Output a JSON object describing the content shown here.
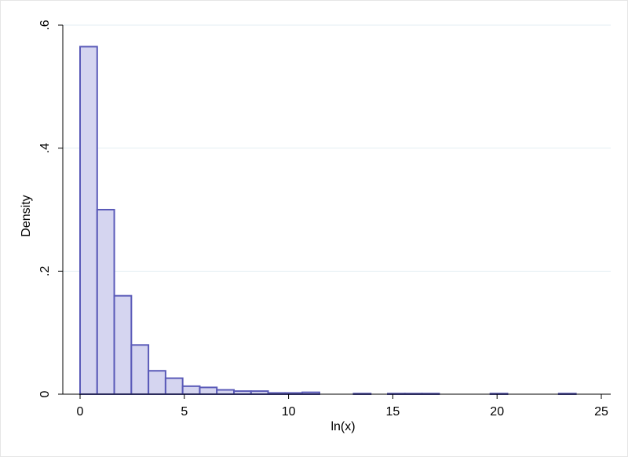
{
  "chart_data": {
    "type": "bar",
    "subtype": "histogram",
    "xlabel": "ln(x)",
    "ylabel": "Density",
    "xlim": [
      0,
      25
    ],
    "ylim": [
      0,
      0.6
    ],
    "xticks": [
      0,
      5,
      10,
      15,
      20,
      25
    ],
    "xtick_labels": [
      "0",
      "5",
      "10",
      "15",
      "20",
      "25"
    ],
    "yticks": [
      0,
      0.2,
      0.4,
      0.6
    ],
    "ytick_labels": [
      "0",
      ".2",
      ".4",
      ".6"
    ],
    "grid": true,
    "legend": "none",
    "colors": {
      "fill": "#d5d5f0",
      "edge": "#5a5ab8",
      "grid": "#e3eef3"
    },
    "bins": [
      {
        "x0": 0.0,
        "x1": 0.82,
        "density": 0.565
      },
      {
        "x0": 0.82,
        "x1": 1.64,
        "density": 0.3
      },
      {
        "x0": 1.64,
        "x1": 2.46,
        "density": 0.16
      },
      {
        "x0": 2.46,
        "x1": 3.28,
        "density": 0.08
      },
      {
        "x0": 3.28,
        "x1": 4.1,
        "density": 0.038
      },
      {
        "x0": 4.1,
        "x1": 4.92,
        "density": 0.026
      },
      {
        "x0": 4.92,
        "x1": 5.74,
        "density": 0.013
      },
      {
        "x0": 5.74,
        "x1": 6.56,
        "density": 0.011
      },
      {
        "x0": 6.56,
        "x1": 7.38,
        "density": 0.007
      },
      {
        "x0": 7.38,
        "x1": 8.2,
        "density": 0.005
      },
      {
        "x0": 8.2,
        "x1": 9.02,
        "density": 0.005
      },
      {
        "x0": 9.02,
        "x1": 9.84,
        "density": 0.002
      },
      {
        "x0": 9.84,
        "x1": 10.66,
        "density": 0.002
      },
      {
        "x0": 10.66,
        "x1": 11.48,
        "density": 0.003
      },
      {
        "x0": 13.12,
        "x1": 13.94,
        "density": 0.001
      },
      {
        "x0": 14.76,
        "x1": 15.58,
        "density": 0.001
      },
      {
        "x0": 15.58,
        "x1": 16.4,
        "density": 0.001
      },
      {
        "x0": 16.4,
        "x1": 17.22,
        "density": 0.001
      },
      {
        "x0": 19.68,
        "x1": 20.5,
        "density": 0.001
      },
      {
        "x0": 22.96,
        "x1": 23.78,
        "density": 0.001
      }
    ]
  }
}
